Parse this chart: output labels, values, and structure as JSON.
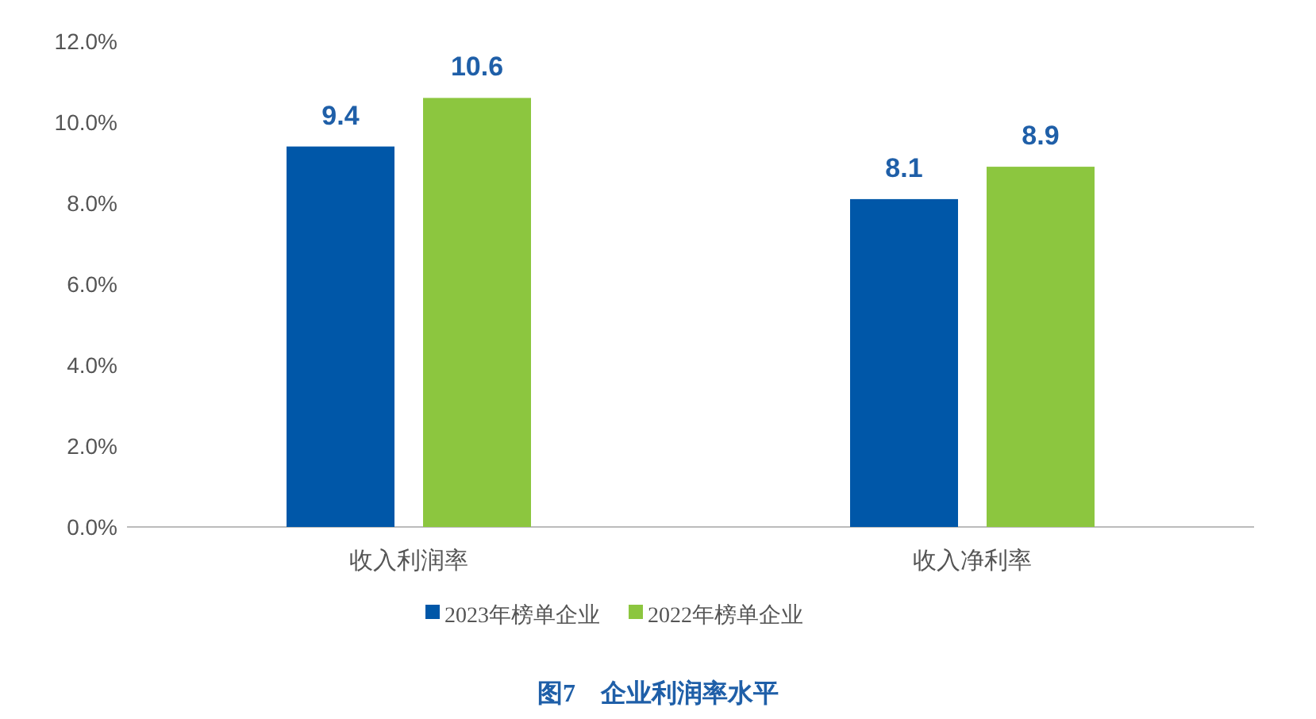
{
  "chart_data": {
    "type": "bar",
    "title": "图7　企业利润率水平",
    "categories": [
      "收入利润率",
      "收入净利率"
    ],
    "series": [
      {
        "name": "2023年榜单企业",
        "color": "#0057a8",
        "values": [
          9.4,
          8.1
        ]
      },
      {
        "name": "2022年榜单企业",
        "color": "#8cc63f",
        "values": [
          10.6,
          8.9
        ]
      }
    ],
    "ylim": [
      0,
      12
    ],
    "yticks": [
      {
        "value": 0,
        "label": "0.0%"
      },
      {
        "value": 2,
        "label": "2.0%"
      },
      {
        "value": 4,
        "label": "4.0%"
      },
      {
        "value": 6,
        "label": "6.0%"
      },
      {
        "value": 8,
        "label": "8.0%"
      },
      {
        "value": 10,
        "label": "10.0%"
      },
      {
        "value": 12,
        "label": "12.0%"
      }
    ],
    "data_labels": true,
    "legend": "bottom"
  }
}
